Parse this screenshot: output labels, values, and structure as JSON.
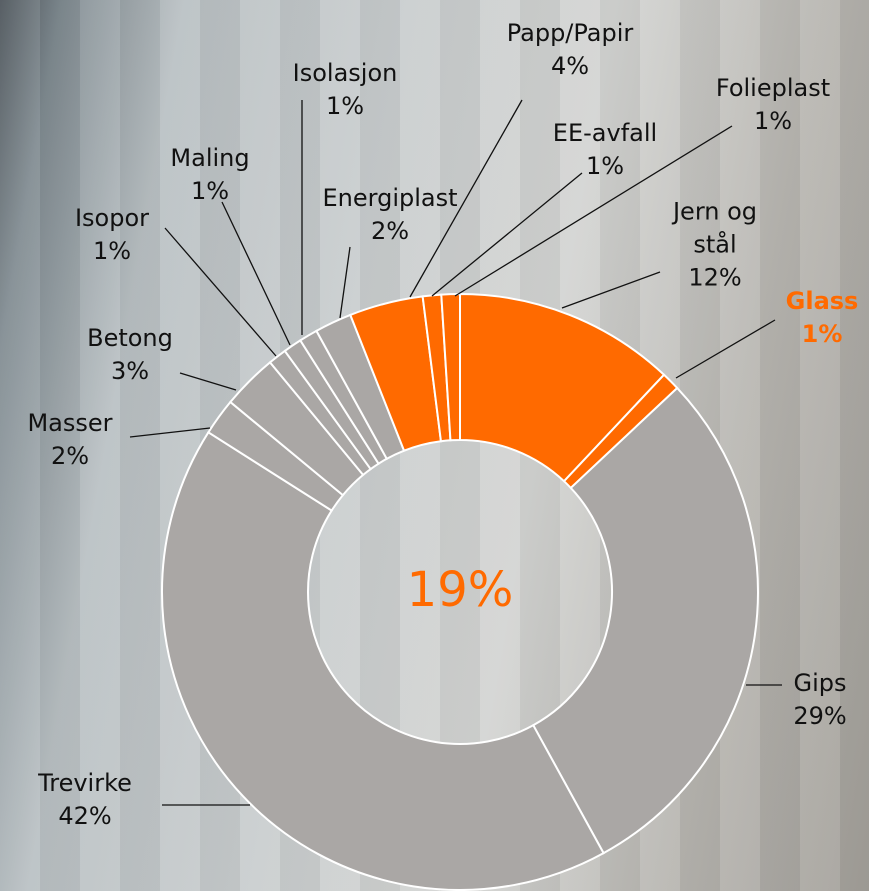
{
  "chart_data": {
    "type": "donut",
    "categories": [
      "Jern og stål",
      "Glass",
      "Gips",
      "Trevirke",
      "Masser",
      "Betong",
      "Isopor",
      "Maling",
      "Isolasjon",
      "Energiplast",
      "Papp/Papir",
      "EE-avfall",
      "Folieplast"
    ],
    "values": [
      12,
      1,
      29,
      42,
      2,
      3,
      1,
      1,
      1,
      2,
      4,
      1,
      1
    ],
    "value_labels": [
      "12%",
      "1%",
      "29%",
      "42%",
      "2%",
      "3%",
      "1%",
      "1%",
      "1%",
      "2%",
      "4%",
      "1%",
      "1%"
    ],
    "colors": [
      "#ff6a00",
      "#ff6a00",
      "#aaa7a5",
      "#aaa7a5",
      "#aaa7a5",
      "#aaa7a5",
      "#aaa7a5",
      "#aaa7a5",
      "#aaa7a5",
      "#aaa7a5",
      "#ff6a00",
      "#ff6a00",
      "#ff6a00"
    ],
    "highlight": [
      1
    ],
    "center_label": "19%"
  }
}
